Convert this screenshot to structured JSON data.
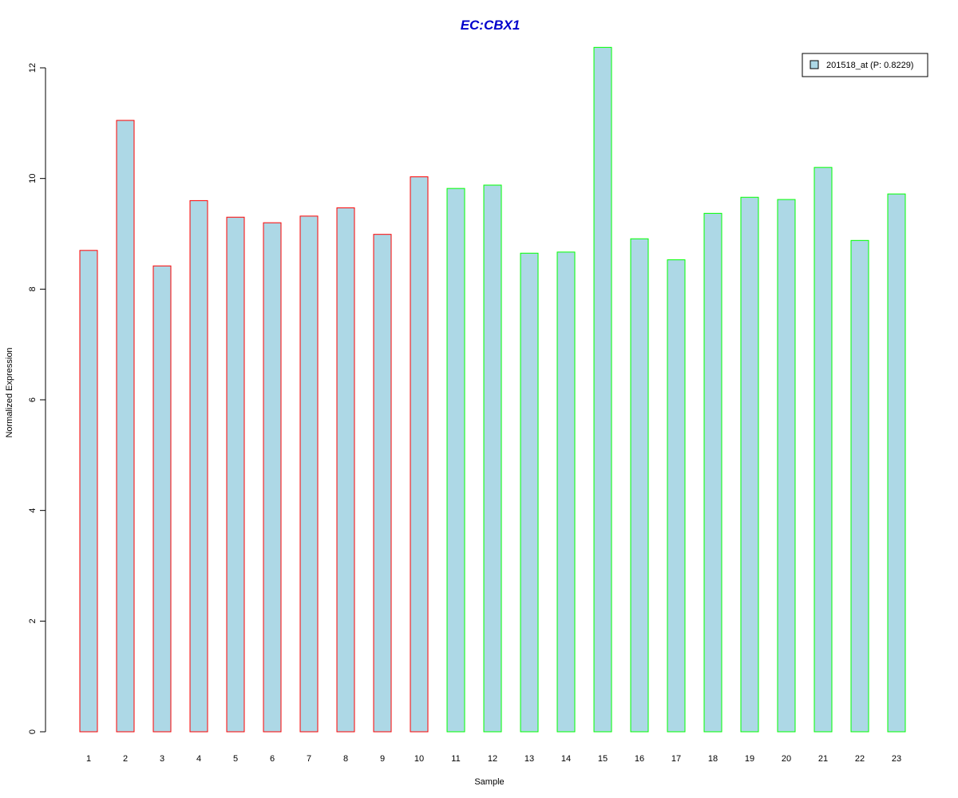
{
  "chart_data": {
    "type": "bar",
    "title": "EC:CBX1",
    "xlabel": "Sample",
    "ylabel": "Normalized Expression",
    "ylim": [
      0,
      12.3
    ],
    "yticks": [
      "0",
      "2",
      "4",
      "6",
      "8",
      "10",
      "12"
    ],
    "categories": [
      "1",
      "2",
      "3",
      "4",
      "5",
      "6",
      "7",
      "8",
      "9",
      "10",
      "11",
      "12",
      "13",
      "14",
      "15",
      "16",
      "17",
      "18",
      "19",
      "20",
      "21",
      "22",
      "23"
    ],
    "series": [
      {
        "name": "201518_at (P: 0.8229)",
        "values": [
          8.7,
          11.05,
          8.42,
          9.6,
          9.3,
          9.2,
          9.32,
          9.47,
          8.99,
          10.03,
          9.82,
          9.88,
          8.65,
          8.67,
          12.37,
          8.91,
          8.53,
          9.37,
          9.66,
          9.62,
          10.2,
          8.88,
          9.72
        ]
      }
    ],
    "groups": [
      "red",
      "red",
      "red",
      "red",
      "red",
      "red",
      "red",
      "red",
      "red",
      "red",
      "green",
      "green",
      "green",
      "green",
      "green",
      "green",
      "green",
      "green",
      "green",
      "green",
      "green",
      "green",
      "green"
    ],
    "legend_position": "top-right",
    "grid": false
  },
  "colors": {
    "title": "#0000CC",
    "bar_fill": "#ADD8E6",
    "red": "#FF0000",
    "green": "#00FF00",
    "axis": "#000000"
  }
}
